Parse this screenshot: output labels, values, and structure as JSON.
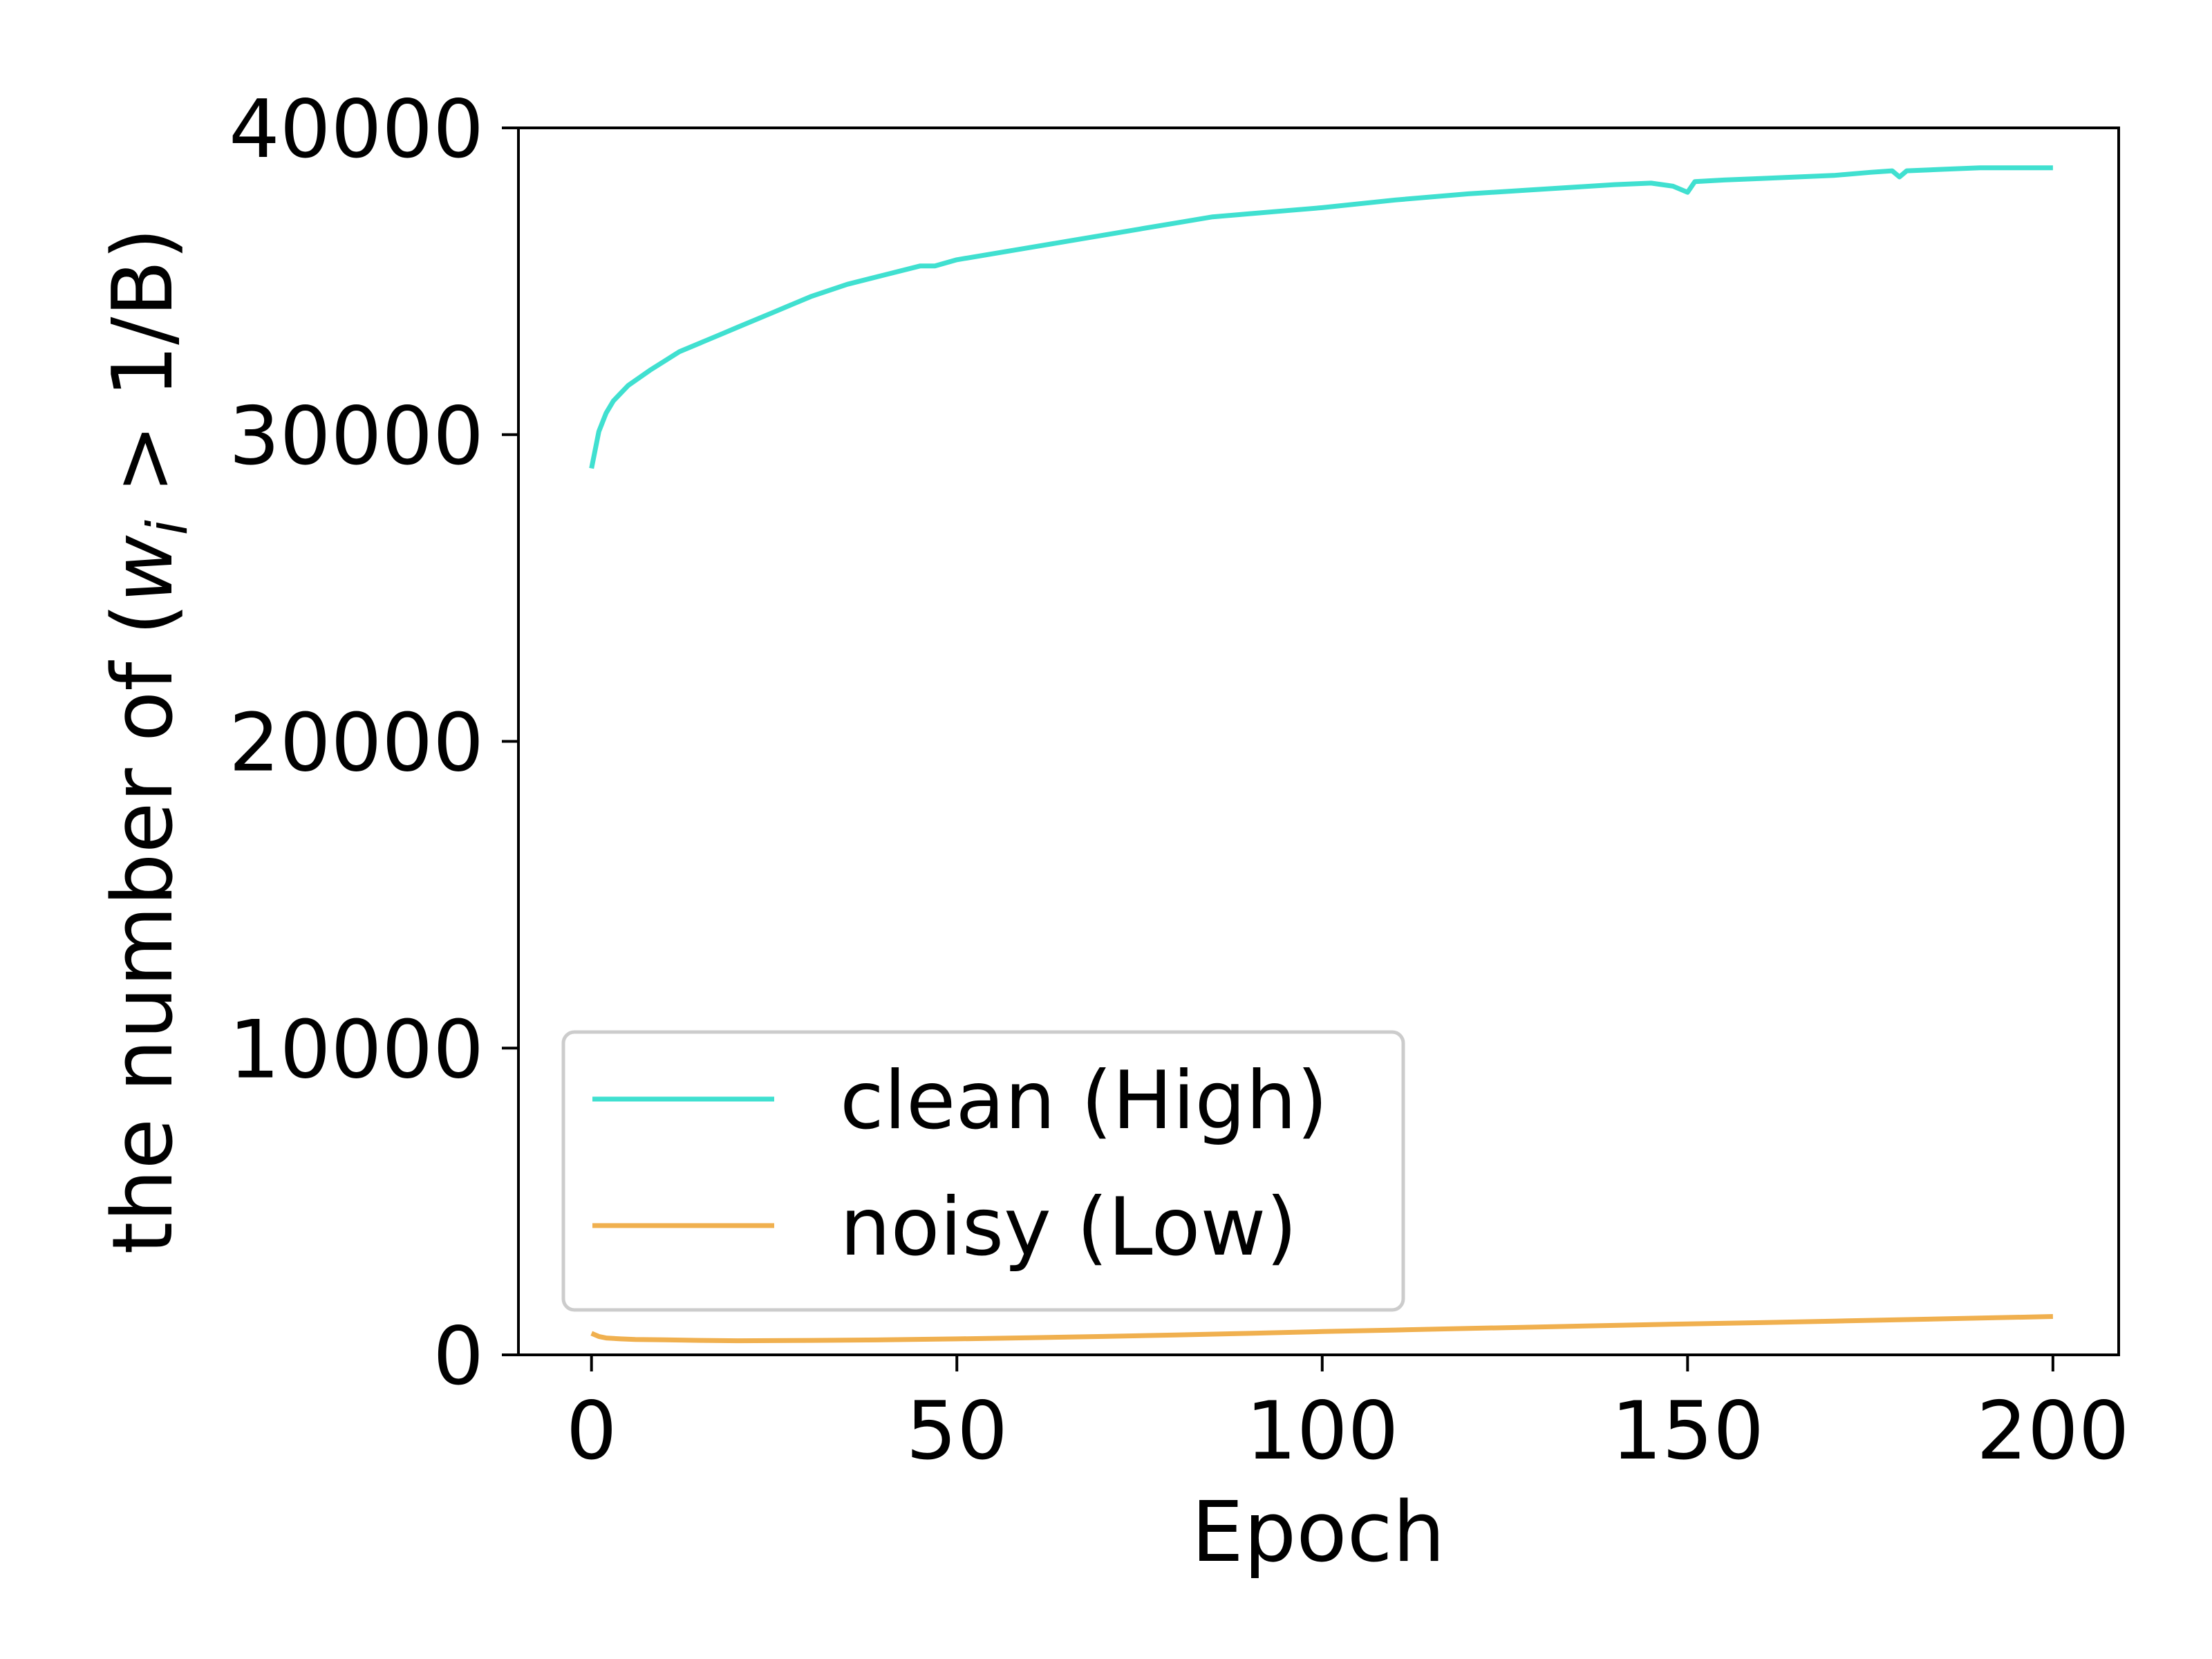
{
  "chart_data": {
    "type": "line",
    "xlabel": "Epoch",
    "ylabel": {
      "prefix": "the number of (",
      "var": "w",
      "sub": "i",
      "suffix": " > 1/B)"
    },
    "xlim": [
      -10,
      209
    ],
    "ylim": [
      0,
      40000
    ],
    "xticks": [
      0,
      50,
      100,
      150,
      200
    ],
    "xtick_labels": [
      "0",
      "50",
      "100",
      "150",
      "200"
    ],
    "yticks": [
      0,
      10000,
      20000,
      30000,
      40000
    ],
    "ytick_labels": [
      "0",
      "10000",
      "20000",
      "30000",
      "40000"
    ],
    "grid": false,
    "legend_position": "lower-left",
    "series": [
      {
        "name": "clean (High)",
        "color": "#40E0D0",
        "x": [
          0,
          1,
          2,
          3,
          5,
          8,
          10,
          12,
          15,
          18,
          20,
          25,
          30,
          35,
          40,
          45,
          47,
          50,
          55,
          60,
          65,
          70,
          75,
          80,
          85,
          90,
          95,
          100,
          110,
          120,
          130,
          140,
          145,
          148,
          150,
          151,
          155,
          160,
          170,
          175,
          178,
          179,
          180,
          185,
          190,
          195,
          200
        ],
        "values": [
          28900,
          30100,
          30700,
          31100,
          31600,
          32100,
          32400,
          32700,
          33000,
          33300,
          33500,
          34000,
          34500,
          34900,
          35200,
          35500,
          35500,
          35700,
          35900,
          36100,
          36300,
          36500,
          36700,
          36900,
          37100,
          37200,
          37300,
          37400,
          37650,
          37850,
          38000,
          38150,
          38200,
          38100,
          37900,
          38250,
          38300,
          38350,
          38450,
          38550,
          38600,
          38400,
          38600,
          38650,
          38700,
          38700,
          38700
        ]
      },
      {
        "name": "noisy (Low)",
        "color": "#F0B04F",
        "x": [
          0,
          1,
          2,
          4,
          6,
          10,
          15,
          20,
          30,
          40,
          50,
          60,
          70,
          80,
          90,
          100,
          110,
          120,
          130,
          140,
          150,
          160,
          170,
          180,
          190,
          200
        ],
        "values": [
          700,
          600,
          550,
          520,
          500,
          490,
          470,
          460,
          470,
          490,
          520,
          560,
          600,
          650,
          700,
          760,
          810,
          860,
          910,
          960,
          1010,
          1050,
          1100,
          1150,
          1200,
          1250
        ]
      }
    ]
  }
}
